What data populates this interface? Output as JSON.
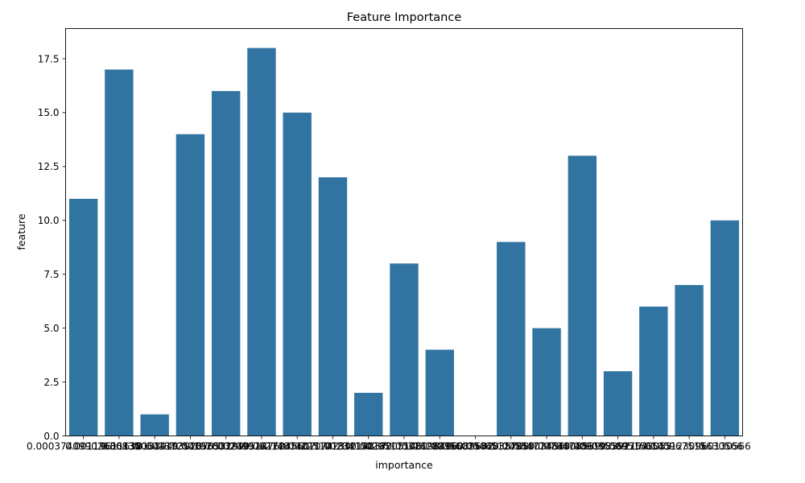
{
  "chart_data": {
    "type": "bar",
    "title": "Feature Importance",
    "xlabel": "importance",
    "ylabel": "feature",
    "ylim": [
      0,
      18.9
    ],
    "yticks": [
      0.0,
      2.5,
      5.0,
      7.5,
      10.0,
      12.5,
      15.0,
      17.5
    ],
    "ytick_labels": [
      "0.0",
      "2.5",
      "5.0",
      "7.5",
      "10.0",
      "12.5",
      "15.0",
      "17.5"
    ],
    "bar_color": "#3274a1",
    "grid": false,
    "legend": "none",
    "categories": [
      "0.00037409902636835",
      "0.0011961163813394",
      "0.0013006441930287",
      "0.0013725405653299",
      "0.0019280324951476",
      "0.0020997617245607",
      "0.0021487401174230",
      "0.0022510183214837",
      "0.0023415018205146",
      "0.0029517508196486",
      "0.0031628896089632",
      "0.0035602584835768",
      "0.0046512485303458",
      "0.0058477484308539",
      "0.0078474861983921",
      "0.0090355697543053",
      "0.0095156545123096",
      "0.0100967515630566",
      "0.0130566"
    ],
    "values": [
      11,
      17,
      1,
      14,
      16,
      18,
      15,
      12,
      2,
      8,
      4,
      0,
      9,
      5,
      13,
      3,
      6,
      7,
      10
    ]
  }
}
